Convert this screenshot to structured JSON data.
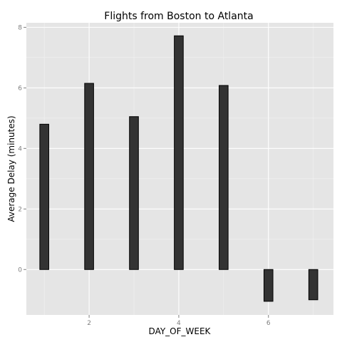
{
  "chart_data": {
    "type": "bar",
    "title": "Flights from Boston to Atlanta",
    "xlabel": "DAY_OF_WEEK",
    "ylabel": "Average Delay (minutes)",
    "x": [
      1,
      2,
      3,
      4,
      5,
      6,
      7
    ],
    "values": [
      4.8,
      6.15,
      5.05,
      7.72,
      6.08,
      -1.05,
      -1.0
    ],
    "xticks": [
      2,
      4,
      6
    ],
    "xtick_labels": [
      "2",
      "4",
      "6"
    ],
    "yticks": [
      0,
      2,
      4,
      6,
      8
    ],
    "ytick_labels": [
      "0",
      "2",
      "4",
      "6",
      "8"
    ],
    "xlim": [
      0.6,
      7.45
    ],
    "ylim": [
      -1.5,
      8.15
    ],
    "grid": true,
    "bar_color": "#333333",
    "panel_color": "#e5e5e5",
    "grid_color": "#ffffff"
  }
}
